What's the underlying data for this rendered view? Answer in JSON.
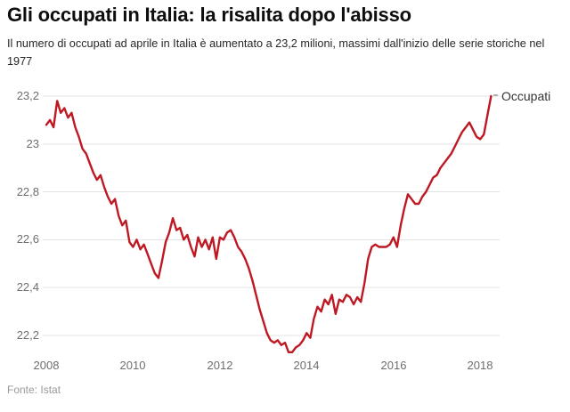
{
  "header": {
    "title": "Gli occupati in Italia: la risalita dopo l'abisso",
    "subtitle": "Il numero di occupati ad aprile in Italia è aumentato a 23,2 milioni, massimi dall'inizio delle serie storiche nel 1977"
  },
  "source": "Fonte: Istat",
  "chart_data": {
    "type": "line",
    "title": "Gli occupati in Italia: la risalita dopo l'abisso",
    "series_label": "Occupati",
    "unit": "milioni",
    "frequency": "monthly",
    "x_start": "2008-01",
    "x_end": "2018-04",
    "grid": true,
    "legend_position": "end-of-line",
    "ylim": [
      22.2,
      23.2
    ],
    "x_tick_years": [
      2008,
      2010,
      2012,
      2014,
      2016,
      2018
    ],
    "y_ticks": [
      {
        "label": "23,2",
        "value": 23.2
      },
      {
        "label": "23",
        "value": 23.0
      },
      {
        "label": "22,8",
        "value": 22.8
      },
      {
        "label": "22,6",
        "value": 22.6
      },
      {
        "label": "22,4",
        "value": 22.4
      },
      {
        "label": "22,2",
        "value": 22.2
      }
    ],
    "values": [
      23.08,
      23.1,
      23.07,
      23.18,
      23.13,
      23.15,
      23.11,
      23.13,
      23.07,
      23.03,
      22.98,
      22.96,
      22.92,
      22.88,
      22.85,
      22.87,
      22.82,
      22.78,
      22.75,
      22.77,
      22.7,
      22.66,
      22.68,
      22.59,
      22.57,
      22.6,
      22.56,
      22.58,
      22.54,
      22.5,
      22.46,
      22.44,
      22.51,
      22.59,
      22.63,
      22.69,
      22.64,
      22.65,
      22.6,
      22.62,
      22.57,
      22.53,
      22.61,
      22.57,
      22.6,
      22.56,
      22.61,
      22.52,
      22.61,
      22.6,
      22.63,
      22.64,
      22.61,
      22.57,
      22.55,
      22.52,
      22.48,
      22.43,
      22.37,
      22.31,
      22.26,
      22.21,
      22.18,
      22.17,
      22.18,
      22.16,
      22.17,
      22.13,
      22.13,
      22.15,
      22.16,
      22.18,
      22.21,
      22.19,
      22.27,
      22.32,
      22.3,
      22.35,
      22.33,
      22.37,
      22.29,
      22.35,
      22.34,
      22.37,
      22.36,
      22.33,
      22.36,
      22.34,
      22.42,
      22.52,
      22.57,
      22.58,
      22.57,
      22.57,
      22.57,
      22.58,
      22.61,
      22.57,
      22.66,
      22.73,
      22.79,
      22.77,
      22.75,
      22.75,
      22.78,
      22.8,
      22.83,
      22.86,
      22.87,
      22.9,
      22.92,
      22.94,
      22.96,
      22.99,
      23.02,
      23.05,
      23.07,
      23.09,
      23.06,
      23.03,
      23.02,
      23.04,
      23.12,
      23.2
    ],
    "colors": {
      "line": "#be1923",
      "grid": "#e3e3e3",
      "tick_text": "#6e6e6e",
      "legend_tick": "#999999",
      "title_text": "#0e0e0e",
      "subtitle_text": "#262626",
      "source_text": "#9a9a9a",
      "legend_text": "#333333",
      "background": "#ffffff"
    }
  }
}
